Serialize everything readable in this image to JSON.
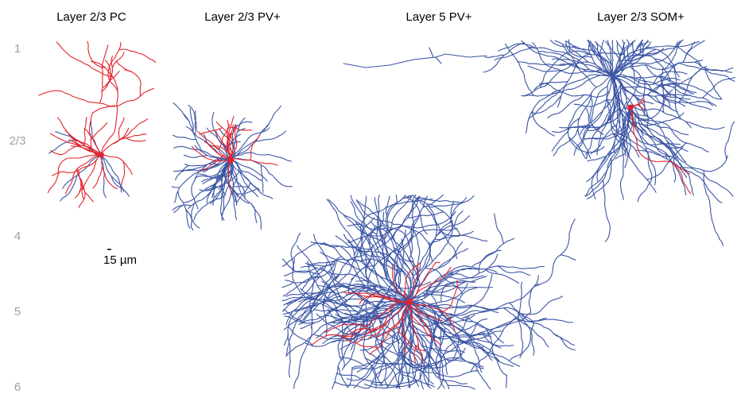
{
  "panels": [
    {
      "title": "Layer 2/3 PC"
    },
    {
      "title": "Layer 2/3 PV+"
    },
    {
      "title": "Layer 5 PV+"
    },
    {
      "title": "Layer 2/3 SOM+"
    }
  ],
  "layers": [
    "1",
    "2/3",
    "4",
    "5",
    "6"
  ],
  "scale_bar": {
    "label": "15 µm"
  }
}
